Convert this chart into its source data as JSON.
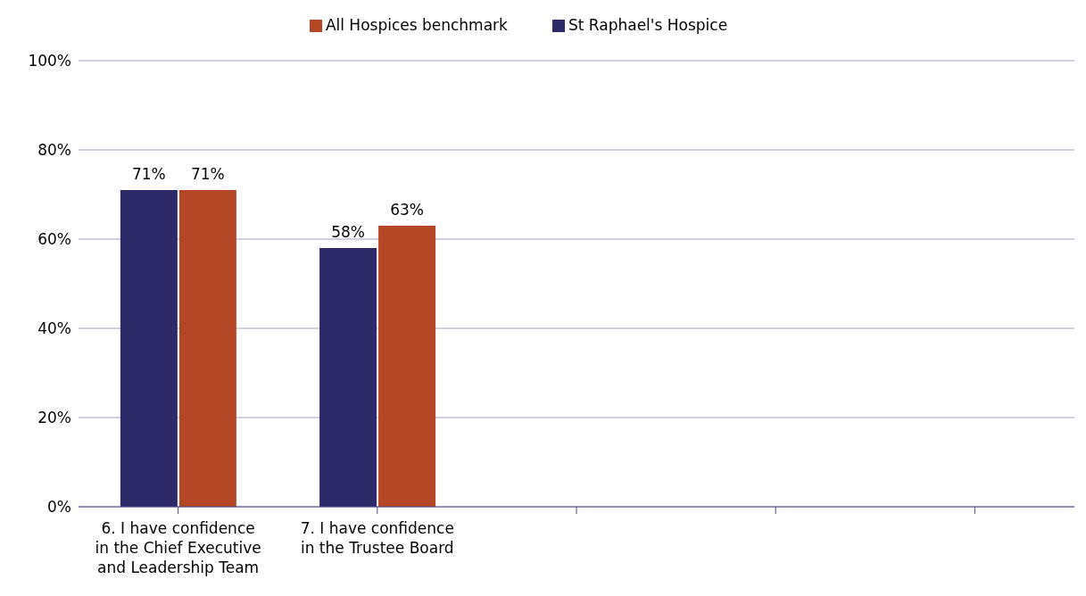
{
  "chart_data": {
    "type": "bar",
    "categories": [
      "6. I have confidence in the Chief Executive and Leadership Team",
      "7. I have confidence in the Trustee Board",
      null,
      null,
      null
    ],
    "series": [
      {
        "name": "St Raphael's Hospice",
        "color": "#2e2a69",
        "values": [
          71,
          58,
          null,
          null,
          null
        ],
        "value_labels": [
          "71%",
          "58%",
          null,
          null,
          null
        ]
      },
      {
        "name": "All Hospices benchmark",
        "color": "#b34726",
        "values": [
          71,
          63,
          null,
          null,
          null
        ],
        "value_labels": [
          "71%",
          "63%",
          null,
          null,
          null
        ]
      }
    ],
    "ylim": [
      0,
      100
    ],
    "yticks": [
      {
        "value": 0,
        "label": "0%"
      },
      {
        "value": 20,
        "label": "20%"
      },
      {
        "value": 40,
        "label": "40%"
      },
      {
        "value": 60,
        "label": "60%"
      },
      {
        "value": 80,
        "label": "80%"
      },
      {
        "value": 100,
        "label": "100%"
      }
    ],
    "grid": "y",
    "legend": "top"
  }
}
